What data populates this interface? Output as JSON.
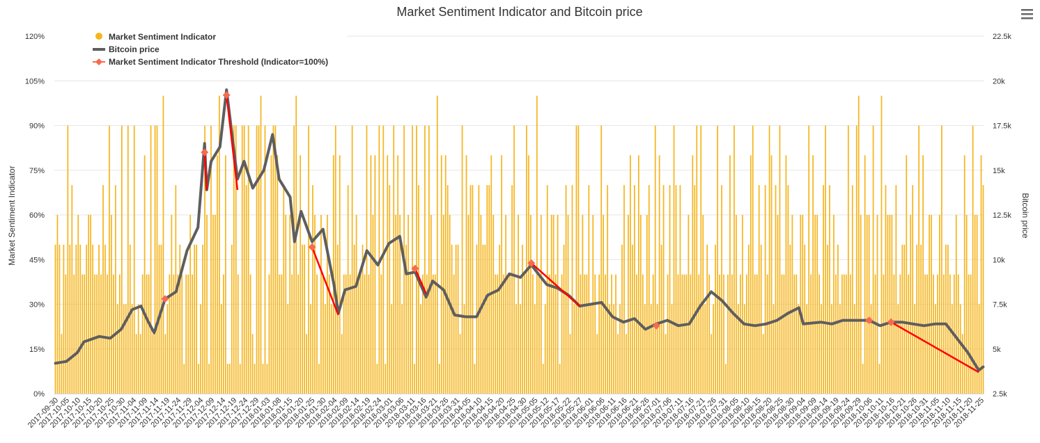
{
  "colors": {
    "indicator": "#F5B51E",
    "price": "#5E5E5E",
    "threshold": "#FF0000",
    "threshold_marker": "#F86A4E",
    "grid": "#E6E6E6",
    "text": "#333333"
  },
  "icons": {
    "menu": "hamburger-menu-icon"
  },
  "chart_data": {
    "type": "bar+line",
    "title": "Market Sentiment Indicator and Bitcoin price",
    "y_left_label": "Market Sentiment Indicator",
    "y_right_label": "Bitcoin price",
    "y_left_ticks": [
      "0%",
      "15%",
      "30%",
      "45%",
      "60%",
      "75%",
      "90%",
      "105%",
      "120%"
    ],
    "y_left_range": [
      0,
      120
    ],
    "y_right_ticks": [
      "2.5k",
      "5k",
      "7.5k",
      "10k",
      "12.5k",
      "15k",
      "17.5k",
      "20k",
      "22.5k"
    ],
    "y_right_range": [
      2500,
      22500
    ],
    "x_start_date": "2017-09-30",
    "x_end_date": "2018-11-27",
    "x_tick_labels": [
      "2017-09-30",
      "2017-10-05",
      "2017-10-10",
      "2017-10-15",
      "2017-10-20",
      "2017-10-25",
      "2017-10-30",
      "2017-11-04",
      "2017-11-09",
      "2017-11-14",
      "2017-11-19",
      "2017-11-24",
      "2017-11-29",
      "2017-12-04",
      "2017-12-09",
      "2017-12-14",
      "2017-12-19",
      "2017-12-24",
      "2017-12-29",
      "2018-01-03",
      "2018-01-08",
      "2018-01-15",
      "2018-01-20",
      "2018-01-25",
      "2018-01-30",
      "2018-02-04",
      "2018-02-09",
      "2018-02-14",
      "2018-02-19",
      "2018-02-24",
      "2018-03-01",
      "2018-03-06",
      "2018-03-11",
      "2018-03-16",
      "2018-03-21",
      "2018-03-26",
      "2018-03-31",
      "2018-04-05",
      "2018-04-10",
      "2018-04-15",
      "2018-04-20",
      "2018-04-25",
      "2018-04-30",
      "2018-05-05",
      "2018-05-12",
      "2018-05-17",
      "2018-05-22",
      "2018-05-27",
      "2018-06-01",
      "2018-06-06",
      "2018-06-11",
      "2018-06-16",
      "2018-06-21",
      "2018-06-26",
      "2018-07-01",
      "2018-07-06",
      "2018-07-11",
      "2018-07-16",
      "2018-07-21",
      "2018-07-26",
      "2018-07-31",
      "2018-08-05",
      "2018-08-10",
      "2018-08-15",
      "2018-08-20",
      "2018-08-25",
      "2018-08-30",
      "2018-09-04",
      "2018-09-09",
      "2018-09-14",
      "2018-09-19",
      "2018-09-24",
      "2018-09-29",
      "2018-10-06",
      "2018-10-11",
      "2018-10-16",
      "2018-10-21",
      "2018-10-26",
      "2018-10-31",
      "2018-11-05",
      "2018-11-10",
      "2018-11-15",
      "2018-11-20",
      "2018-11-25"
    ],
    "legend": {
      "position": "top-left",
      "items": [
        {
          "name": "Market Sentiment Indicator",
          "marker": "circle"
        },
        {
          "name": "Bitcoin price",
          "marker": "line"
        },
        {
          "name": "Market Sentiment Indicator Threshold (Indicator=100%)",
          "marker": "diamond-line"
        }
      ]
    },
    "indicator_values": [
      50,
      60,
      50,
      20,
      50,
      40,
      90,
      50,
      70,
      40,
      50,
      60,
      50,
      40,
      40,
      50,
      60,
      60,
      50,
      40,
      40,
      50,
      40,
      70,
      50,
      40,
      90,
      60,
      40,
      70,
      30,
      40,
      90,
      30,
      30,
      90,
      50,
      30,
      90,
      20,
      30,
      20,
      40,
      80,
      40,
      40,
      90,
      20,
      90,
      90,
      50,
      50,
      100,
      20,
      30,
      40,
      60,
      40,
      70,
      40,
      50,
      40,
      10,
      40,
      40,
      60,
      40,
      50,
      50,
      10,
      30,
      50,
      90,
      60,
      10,
      90,
      60,
      60,
      80,
      100,
      30,
      40,
      80,
      10,
      10,
      50,
      90,
      90,
      40,
      10,
      90,
      90,
      70,
      90,
      40,
      20,
      10,
      90,
      90,
      100,
      10,
      90,
      10,
      40,
      80,
      90,
      90,
      80,
      40,
      40,
      70,
      60,
      30,
      60,
      40,
      90,
      100,
      40,
      80,
      50,
      50,
      20,
      90,
      30,
      70,
      60,
      40,
      10,
      60,
      40,
      30,
      60,
      40,
      30,
      80,
      90,
      50,
      80,
      20,
      40,
      40,
      70,
      40,
      90,
      50,
      60,
      40,
      40,
      50,
      40,
      90,
      40,
      80,
      60,
      80,
      10,
      90,
      40,
      90,
      10,
      80,
      70,
      30,
      90,
      60,
      80,
      60,
      30,
      90,
      50,
      60,
      40,
      90,
      10,
      90,
      70,
      30,
      40,
      90,
      40,
      90,
      60,
      40,
      40,
      100,
      10,
      80,
      60,
      80,
      70,
      60,
      50,
      40,
      50,
      50,
      20,
      90,
      30,
      80,
      60,
      70,
      70,
      10,
      50,
      70,
      60,
      50,
      50,
      70,
      70,
      80,
      60,
      40,
      40,
      50,
      80,
      40,
      60,
      40,
      40,
      70,
      90,
      30,
      60,
      30,
      50,
      40,
      90,
      80,
      60,
      40,
      30,
      100,
      40,
      60,
      10,
      30,
      70,
      40,
      60,
      60,
      40,
      60,
      10,
      40,
      50,
      70,
      60,
      20,
      70,
      30,
      90,
      90,
      40,
      60,
      40,
      40,
      70,
      30,
      60,
      40,
      20,
      40,
      90,
      60,
      40,
      70,
      30,
      40,
      30,
      40,
      20,
      30,
      50,
      70,
      20,
      60,
      80,
      50,
      70,
      40,
      80,
      60,
      40,
      30,
      60,
      70,
      30,
      40,
      90,
      30,
      80,
      50,
      70,
      20,
      40,
      70,
      30,
      90,
      70,
      40,
      70,
      40,
      40,
      40,
      60,
      40,
      80,
      70,
      90,
      40,
      90,
      60,
      30,
      50,
      40,
      20,
      30,
      50,
      90,
      40,
      70,
      40,
      10,
      40,
      80,
      40,
      90,
      60,
      30,
      40,
      60,
      30,
      40,
      50,
      80,
      90,
      40,
      40,
      70,
      50,
      20,
      70,
      40,
      90,
      80,
      30,
      70,
      60,
      90,
      40,
      40,
      80,
      70,
      50,
      60,
      40,
      40,
      30,
      60,
      60,
      50,
      30,
      90,
      40,
      80,
      60,
      60,
      40,
      30,
      70,
      90,
      50,
      70,
      30,
      60,
      40,
      50,
      30,
      40,
      40,
      40,
      90,
      40,
      70,
      30,
      90,
      100,
      60,
      10,
      80,
      60,
      60,
      30,
      90,
      40,
      60,
      10,
      100,
      40,
      70,
      60,
      60,
      60,
      40,
      70,
      30,
      40,
      50,
      50,
      80,
      40,
      60,
      70,
      30,
      50,
      90,
      50,
      80,
      40,
      40,
      60,
      60,
      40,
      30,
      40,
      60,
      90,
      40,
      50,
      50,
      40,
      30,
      40,
      60,
      40,
      30,
      20,
      80,
      60,
      40,
      40,
      90,
      60,
      60,
      30,
      80,
      70
    ],
    "price_series": [
      [
        "2017-09-30",
        4200
      ],
      [
        "2017-10-05",
        4300
      ],
      [
        "2017-10-10",
        4800
      ],
      [
        "2017-10-13",
        5400
      ],
      [
        "2017-10-20",
        5700
      ],
      [
        "2017-10-25",
        5600
      ],
      [
        "2017-10-30",
        6100
      ],
      [
        "2017-11-04",
        7200
      ],
      [
        "2017-11-08",
        7400
      ],
      [
        "2017-11-11",
        6600
      ],
      [
        "2017-11-14",
        5900
      ],
      [
        "2017-11-19",
        7800
      ],
      [
        "2017-11-24",
        8200
      ],
      [
        "2017-11-29",
        10500
      ],
      [
        "2017-12-04",
        11800
      ],
      [
        "2017-12-07",
        16500
      ],
      [
        "2017-12-08",
        13900
      ],
      [
        "2017-12-10",
        15500
      ],
      [
        "2017-12-14",
        16300
      ],
      [
        "2017-12-17",
        19500
      ],
      [
        "2017-12-22",
        14500
      ],
      [
        "2017-12-25",
        15500
      ],
      [
        "2017-12-29",
        14000
      ],
      [
        "2018-01-03",
        15000
      ],
      [
        "2018-01-07",
        17000
      ],
      [
        "2018-01-10",
        14500
      ],
      [
        "2018-01-15",
        13500
      ],
      [
        "2018-01-17",
        11000
      ],
      [
        "2018-01-20",
        12700
      ],
      [
        "2018-01-25",
        11000
      ],
      [
        "2018-01-30",
        11700
      ],
      [
        "2018-02-04",
        8600
      ],
      [
        "2018-02-06",
        7000
      ],
      [
        "2018-02-09",
        8300
      ],
      [
        "2018-02-14",
        8500
      ],
      [
        "2018-02-19",
        10500
      ],
      [
        "2018-02-24",
        9700
      ],
      [
        "2018-03-01",
        10900
      ],
      [
        "2018-03-06",
        11300
      ],
      [
        "2018-03-09",
        9200
      ],
      [
        "2018-03-13",
        9300
      ],
      [
        "2018-03-18",
        7900
      ],
      [
        "2018-03-21",
        8800
      ],
      [
        "2018-03-26",
        8300
      ],
      [
        "2018-03-31",
        6900
      ],
      [
        "2018-04-05",
        6800
      ],
      [
        "2018-04-10",
        6800
      ],
      [
        "2018-04-15",
        8000
      ],
      [
        "2018-04-20",
        8300
      ],
      [
        "2018-04-25",
        9200
      ],
      [
        "2018-04-30",
        9000
      ],
      [
        "2018-05-05",
        9700
      ],
      [
        "2018-05-12",
        8600
      ],
      [
        "2018-05-17",
        8400
      ],
      [
        "2018-05-22",
        8000
      ],
      [
        "2018-05-27",
        7400
      ],
      [
        "2018-06-01",
        7500
      ],
      [
        "2018-06-06",
        7600
      ],
      [
        "2018-06-11",
        6800
      ],
      [
        "2018-06-16",
        6500
      ],
      [
        "2018-06-21",
        6700
      ],
      [
        "2018-06-26",
        6100
      ],
      [
        "2018-07-01",
        6400
      ],
      [
        "2018-07-06",
        6600
      ],
      [
        "2018-07-11",
        6300
      ],
      [
        "2018-07-16",
        6400
      ],
      [
        "2018-07-21",
        7400
      ],
      [
        "2018-07-26",
        8200
      ],
      [
        "2018-07-31",
        7700
      ],
      [
        "2018-08-05",
        7000
      ],
      [
        "2018-08-10",
        6400
      ],
      [
        "2018-08-15",
        6300
      ],
      [
        "2018-08-20",
        6400
      ],
      [
        "2018-08-25",
        6600
      ],
      [
        "2018-08-30",
        7000
      ],
      [
        "2018-09-04",
        7300
      ],
      [
        "2018-09-06",
        6400
      ],
      [
        "2018-09-14",
        6500
      ],
      [
        "2018-09-19",
        6400
      ],
      [
        "2018-09-24",
        6600
      ],
      [
        "2018-09-29",
        6600
      ],
      [
        "2018-10-06",
        6600
      ],
      [
        "2018-10-11",
        6300
      ],
      [
        "2018-10-16",
        6500
      ],
      [
        "2018-10-21",
        6500
      ],
      [
        "2018-10-26",
        6400
      ],
      [
        "2018-10-31",
        6300
      ],
      [
        "2018-11-05",
        6400
      ],
      [
        "2018-11-10",
        6400
      ],
      [
        "2018-11-15",
        5600
      ],
      [
        "2018-11-20",
        4800
      ],
      [
        "2018-11-25",
        3800
      ],
      [
        "2018-11-27",
        4000
      ]
    ],
    "threshold_segments": [
      {
        "start": [
          "2017-11-19",
          7800
        ],
        "end": [
          "2017-11-19",
          7800
        ]
      },
      {
        "start": [
          "2017-12-07",
          16000
        ],
        "end": [
          "2017-12-08",
          13900
        ]
      },
      {
        "start": [
          "2017-12-17",
          19200
        ],
        "end": [
          "2017-12-22",
          13900
        ]
      },
      {
        "start": [
          "2018-01-25",
          10700
        ],
        "end": [
          "2018-02-06",
          6900
        ]
      },
      {
        "start": [
          "2018-03-13",
          9500
        ],
        "end": [
          "2018-03-18",
          8100
        ]
      },
      {
        "start": [
          "2018-05-05",
          9800
        ],
        "end": [
          "2018-05-27",
          7400
        ]
      },
      {
        "start": [
          "2018-07-01",
          6300
        ],
        "end": [
          "2018-07-01",
          6300
        ]
      },
      {
        "start": [
          "2018-10-06",
          6600
        ],
        "end": [
          "2018-10-06",
          6600
        ]
      },
      {
        "start": [
          "2018-10-16",
          6500
        ],
        "end": [
          "2018-11-25",
          3700
        ]
      }
    ]
  }
}
